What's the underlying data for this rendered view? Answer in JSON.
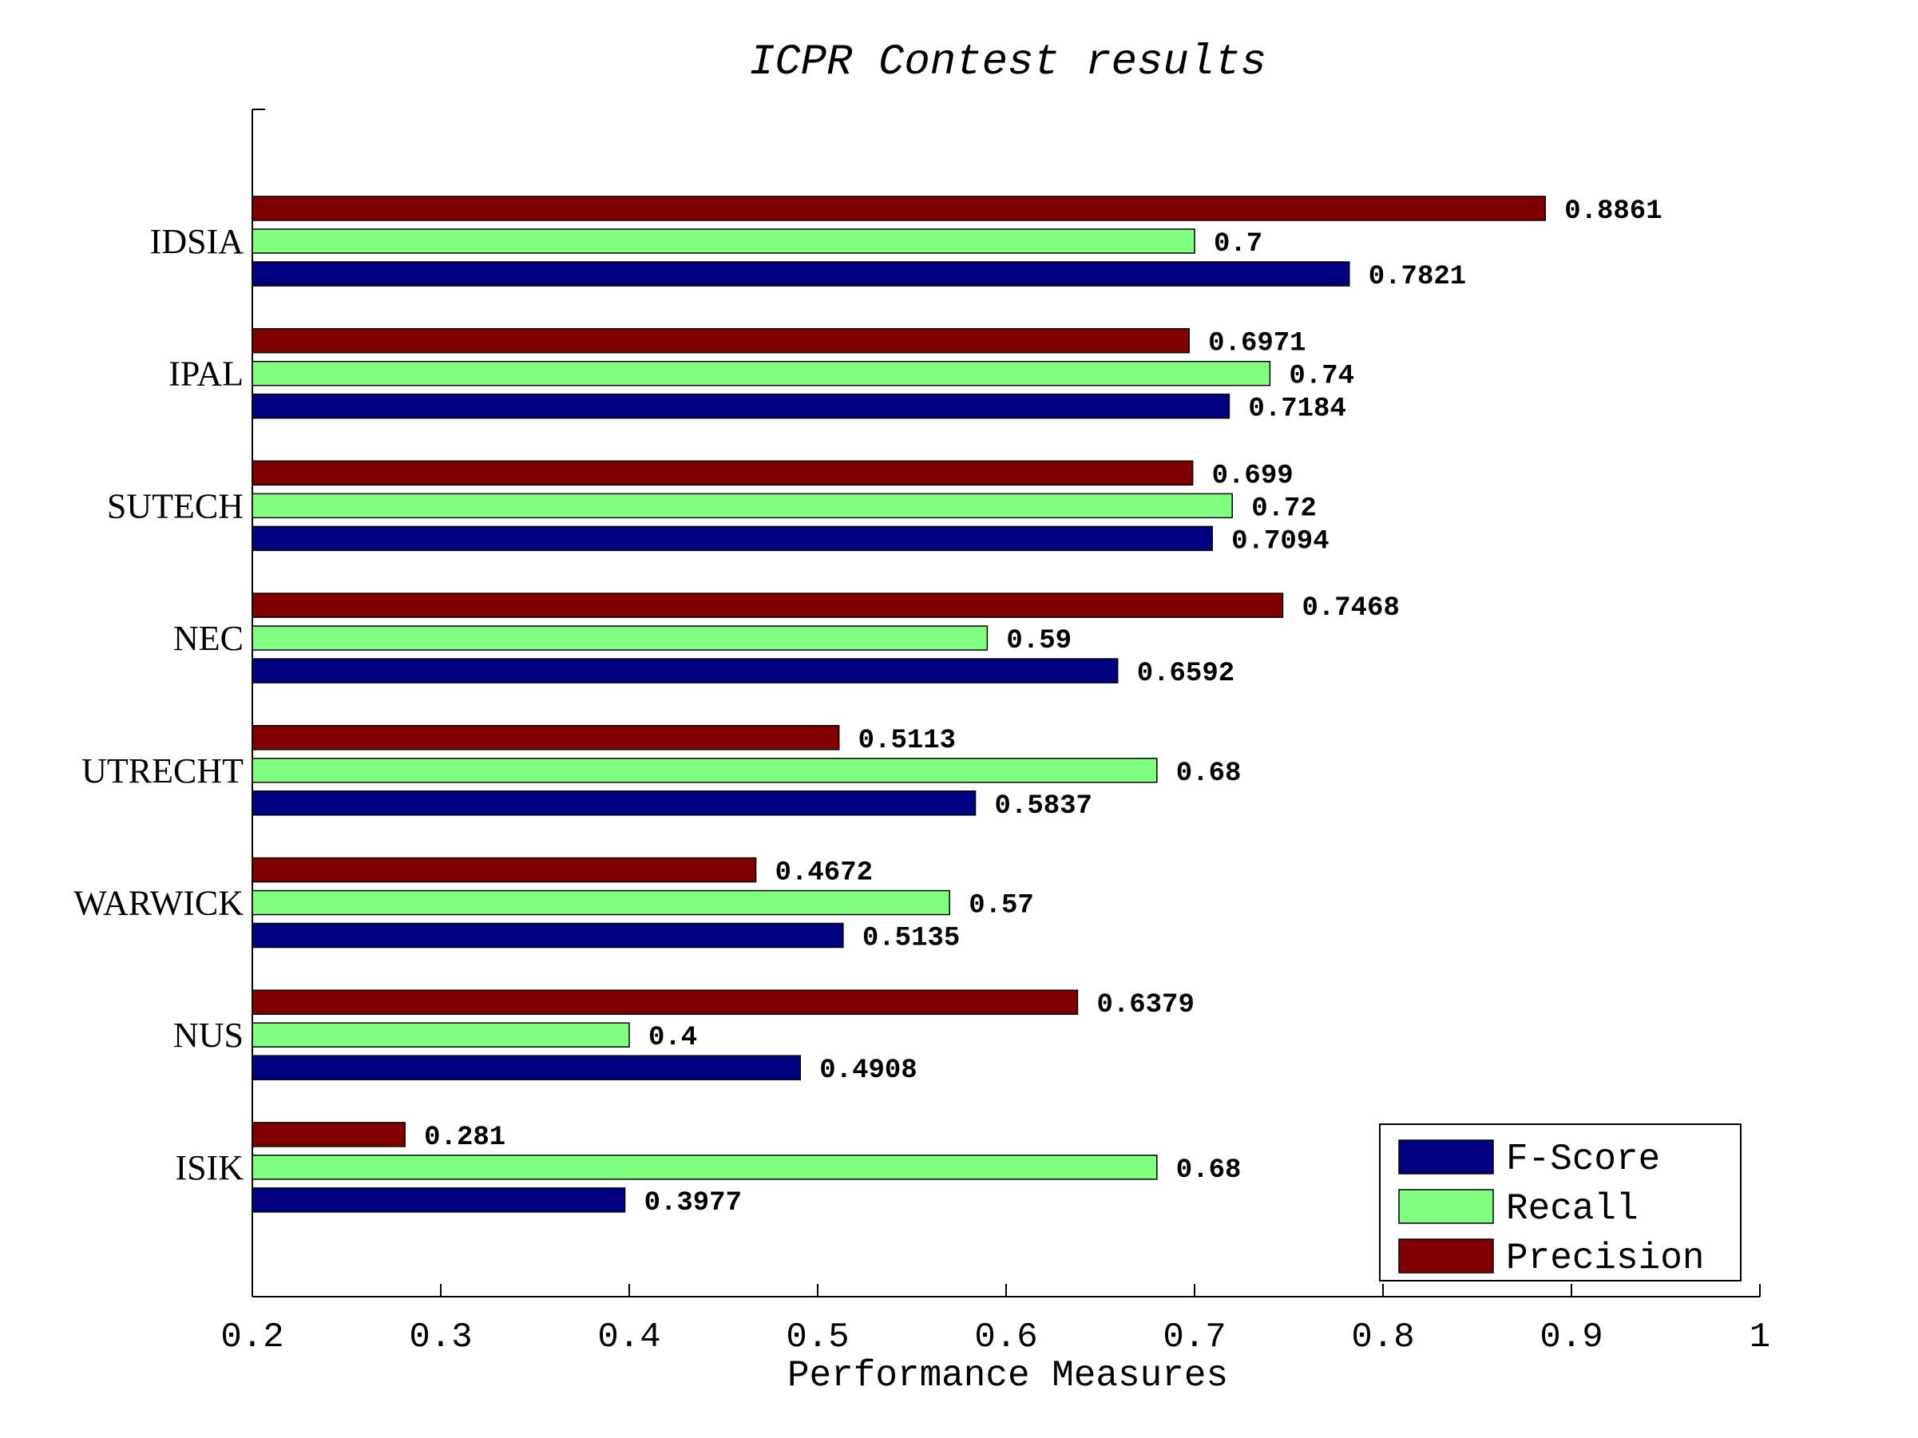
{
  "chart_data": {
    "type": "bar",
    "orientation": "horizontal",
    "title": "ICPR Contest results",
    "xlabel": "Performance Measures",
    "ylabel": "",
    "xlim": [
      0.2,
      1.0
    ],
    "xticks": [
      "0.2",
      "0.3",
      "0.4",
      "0.5",
      "0.6",
      "0.7",
      "0.8",
      "0.9",
      "1"
    ],
    "categories": [
      "IDSIA",
      "IPAL",
      "SUTECH",
      "NEC",
      "UTRECHT",
      "WARWICK",
      "NUS",
      "ISIK"
    ],
    "series": [
      {
        "name": "Precision",
        "color": "#800000",
        "values": [
          0.8861,
          0.6971,
          0.699,
          0.7468,
          0.5113,
          0.4672,
          0.6379,
          0.281
        ],
        "labels": [
          "0.8861",
          "0.6971",
          "0.699",
          "0.7468",
          "0.5113",
          "0.4672",
          "0.6379",
          "0.281"
        ]
      },
      {
        "name": "Recall",
        "color": "#80ff80",
        "values": [
          0.7,
          0.74,
          0.72,
          0.59,
          0.68,
          0.57,
          0.4,
          0.68
        ],
        "labels": [
          "0.7",
          "0.74",
          "0.72",
          "0.59",
          "0.68",
          "0.57",
          "0.4",
          "0.68"
        ]
      },
      {
        "name": "F-Score",
        "color": "#000080",
        "values": [
          0.7821,
          0.7184,
          0.7094,
          0.6592,
          0.5837,
          0.5135,
          0.4908,
          0.3977
        ],
        "labels": [
          "0.7821",
          "0.7184",
          "0.7094",
          "0.6592",
          "0.5837",
          "0.5135",
          "0.4908",
          "0.3977"
        ]
      }
    ],
    "legend": {
      "placement": "bottom-right",
      "order": [
        "F-Score",
        "Recall",
        "Precision"
      ]
    },
    "grid": false
  }
}
